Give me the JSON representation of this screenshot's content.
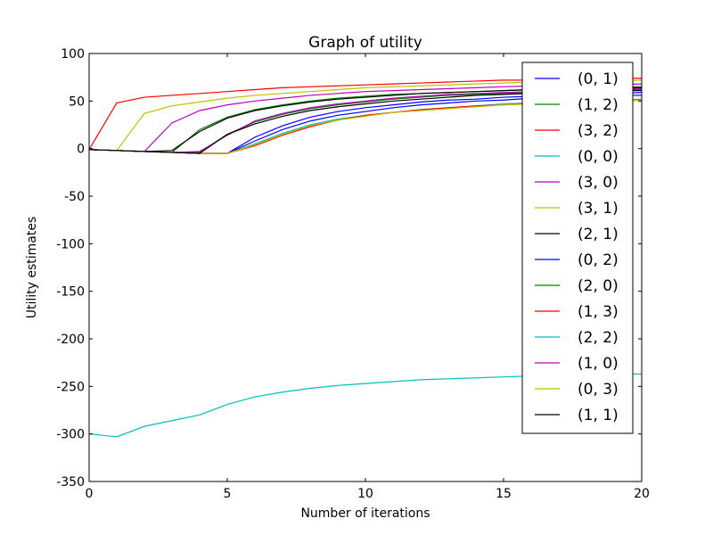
{
  "chart_data": {
    "type": "line",
    "title": "Graph of utility",
    "xlabel": "Number of iterations",
    "ylabel": "Utility estimates",
    "xlim": [
      0,
      20
    ],
    "ylim": [
      -350,
      100
    ],
    "xticks": [
      0,
      5,
      10,
      15,
      20
    ],
    "yticks": [
      100,
      50,
      0,
      -50,
      -100,
      -150,
      -200,
      -250,
      -300,
      -350
    ],
    "grid": false,
    "legend_position": "top-right",
    "x": [
      0,
      1,
      2,
      3,
      4,
      5,
      6,
      7,
      8,
      9,
      10,
      11,
      12,
      13,
      14,
      15,
      16,
      17,
      18,
      19,
      20
    ],
    "series": [
      {
        "name": "(0, 1)",
        "color": "#0000ff",
        "values": [
          -1,
          -2,
          -3,
          -4,
          -5,
          -5,
          12,
          24,
          33,
          39,
          43,
          46,
          49,
          51,
          52,
          54,
          55,
          56,
          57,
          58,
          59
        ]
      },
      {
        "name": "(1, 2)",
        "color": "#008000",
        "values": [
          -1,
          -2,
          -3,
          -4,
          20,
          33,
          41,
          46,
          50,
          53,
          55,
          57,
          58,
          59,
          60,
          61,
          62,
          63,
          64,
          65,
          65
        ]
      },
      {
        "name": "(3, 2)",
        "color": "#ff0000",
        "values": [
          -1,
          48,
          54,
          56,
          58,
          60,
          62,
          64,
          65,
          66,
          67,
          68,
          69,
          70,
          71,
          72,
          72,
          73,
          73,
          74,
          74
        ]
      },
      {
        "name": "(0, 0)",
        "color": "#00bfbf",
        "values": [
          -1,
          -2,
          -3,
          -4,
          -5,
          -5,
          5,
          16,
          25,
          31,
          35,
          38,
          41,
          43,
          45,
          47,
          48,
          49,
          50,
          51,
          52
        ]
      },
      {
        "name": "(3, 0)",
        "color": "#bf00bf",
        "values": [
          -1,
          -2,
          -3,
          27,
          40,
          46,
          50,
          53,
          56,
          58,
          60,
          61,
          62,
          63,
          64,
          65,
          66,
          66,
          67,
          67,
          68
        ]
      },
      {
        "name": "(3, 1)",
        "color": "#bfbf00",
        "values": [
          -1,
          -2,
          37,
          45,
          49,
          53,
          56,
          58,
          60,
          62,
          64,
          65,
          66,
          67,
          68,
          69,
          70,
          70,
          71,
          71,
          72
        ]
      },
      {
        "name": "(2, 1)",
        "color": "#000000",
        "values": [
          -1,
          -2,
          -3,
          -2,
          18,
          32,
          40,
          45,
          49,
          52,
          54,
          56,
          58,
          59,
          60,
          61,
          62,
          63,
          63,
          64,
          64
        ]
      },
      {
        "name": "(0, 2)",
        "color": "#0000ff",
        "values": [
          -1,
          -2,
          -3,
          -4,
          -5,
          -5,
          8,
          20,
          29,
          35,
          39,
          43,
          46,
          48,
          50,
          51,
          53,
          54,
          55,
          56,
          56
        ]
      },
      {
        "name": "(2, 0)",
        "color": "#008000",
        "values": [
          -1,
          -2,
          -3,
          -4,
          -4,
          15,
          28,
          36,
          42,
          46,
          49,
          52,
          54,
          56,
          57,
          58,
          59,
          60,
          61,
          62,
          62
        ]
      },
      {
        "name": "(1, 3)",
        "color": "#ff0000",
        "values": [
          -1,
          -2,
          -3,
          -4,
          -5,
          -5,
          3,
          14,
          23,
          30,
          35,
          38,
          41,
          43,
          45,
          46,
          48,
          49,
          50,
          50,
          51
        ]
      },
      {
        "name": "(2, 2)",
        "color": "#00bfbf",
        "values": [
          -300,
          -303,
          -292,
          -286,
          -280,
          -269,
          -261,
          -256,
          -252,
          -249,
          -247,
          -245,
          -243,
          -242,
          -241,
          -240,
          -239,
          -238,
          -238,
          -237,
          -237
        ]
      },
      {
        "name": "(1, 0)",
        "color": "#bf00bf",
        "values": [
          -1,
          -2,
          -3,
          -4,
          -3,
          14,
          29,
          37,
          43,
          47,
          50,
          53,
          55,
          57,
          58,
          59,
          60,
          61,
          62,
          63,
          63
        ]
      },
      {
        "name": "(0, 3)",
        "color": "#bfbf00",
        "values": [
          -1,
          -2,
          -3,
          -4,
          -5,
          -5,
          4,
          15,
          24,
          30,
          34,
          38,
          40,
          42,
          44,
          46,
          47,
          48,
          49,
          50,
          51
        ]
      },
      {
        "name": "(1, 1)",
        "color": "#000000",
        "values": [
          -1,
          -2,
          -3,
          -4,
          -5,
          15,
          26,
          34,
          40,
          44,
          47,
          50,
          52,
          54,
          56,
          57,
          58,
          59,
          60,
          61,
          61
        ]
      }
    ]
  }
}
